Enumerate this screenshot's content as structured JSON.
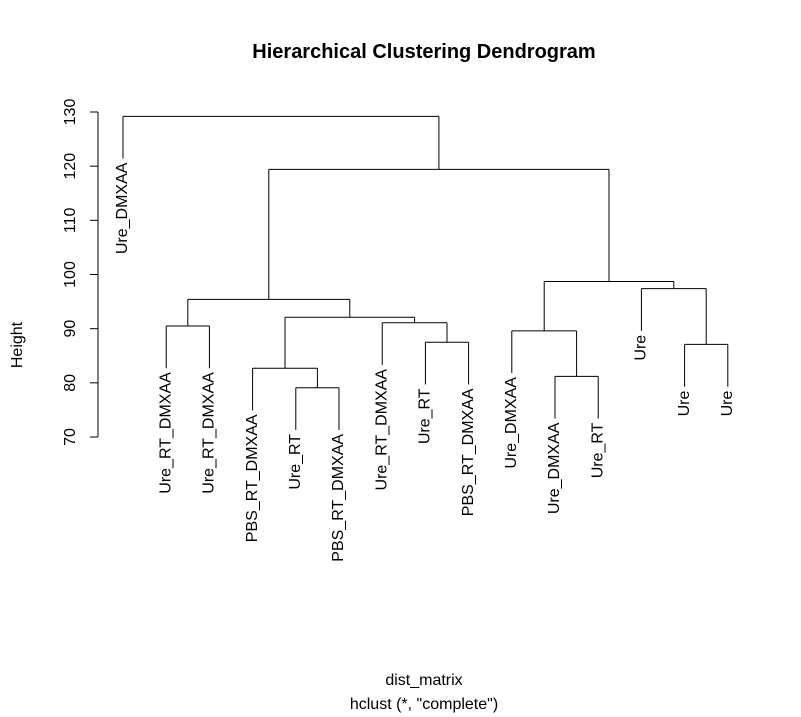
{
  "chart_data": {
    "type": "dendrogram",
    "title": "Hierarchical Clustering Dendrogram",
    "xlabel": "dist_matrix",
    "sub": "hclust (*, \"complete\")",
    "ylabel": "Height",
    "ylim": [
      70,
      130
    ],
    "yticks": [
      70,
      80,
      90,
      100,
      110,
      120,
      130
    ],
    "leaves": [
      {
        "id": 1,
        "label": "Ure_DMXAA"
      },
      {
        "id": 2,
        "label": "Ure_RT_DMXAA"
      },
      {
        "id": 3,
        "label": "Ure_RT_DMXAA"
      },
      {
        "id": 4,
        "label": "PBS_RT_DMXAA"
      },
      {
        "id": 5,
        "label": "Ure_RT"
      },
      {
        "id": 6,
        "label": "PBS_RT_DMXAA"
      },
      {
        "id": 7,
        "label": "Ure_RT_DMXAA"
      },
      {
        "id": 8,
        "label": "Ure_RT"
      },
      {
        "id": 9,
        "label": "PBS_RT_DMXAA"
      },
      {
        "id": 10,
        "label": "Ure_DMXAA"
      },
      {
        "id": 11,
        "label": "Ure_DMXAA"
      },
      {
        "id": 12,
        "label": "Ure_RT"
      },
      {
        "id": 13,
        "label": "Ure"
      },
      {
        "id": 14,
        "label": "Ure"
      },
      {
        "id": 15,
        "label": "Ure"
      }
    ],
    "merges": [
      {
        "id": "m1",
        "left": 5,
        "right": 6,
        "height": 79.1
      },
      {
        "id": "m2",
        "left": 4,
        "right": "m1",
        "height": 82.7
      },
      {
        "id": "m3",
        "left": 11,
        "right": 12,
        "height": 81.2
      },
      {
        "id": "m4",
        "left": 14,
        "right": 15,
        "height": 87.1
      },
      {
        "id": "m5",
        "left": 8,
        "right": 9,
        "height": 87.5
      },
      {
        "id": "m6",
        "left": 10,
        "right": "m3",
        "height": 89.6
      },
      {
        "id": "m7",
        "left": 2,
        "right": 3,
        "height": 90.5
      },
      {
        "id": "m8",
        "left": 7,
        "right": "m5",
        "height": 91.1
      },
      {
        "id": "m9",
        "left": "m2",
        "right": "m8",
        "height": 92.1
      },
      {
        "id": "m10",
        "left": "m7",
        "right": "m9",
        "height": 95.4
      },
      {
        "id": "m11",
        "left": 13,
        "right": "m4",
        "height": 97.4
      },
      {
        "id": "m12",
        "left": "m6",
        "right": "m11",
        "height": 98.7
      },
      {
        "id": "m13",
        "left": "m10",
        "right": "m12",
        "height": 119.4
      },
      {
        "id": "m14",
        "left": 1,
        "right": "m13",
        "height": 129.2
      }
    ],
    "leaf_label_offset": 7.8
  }
}
